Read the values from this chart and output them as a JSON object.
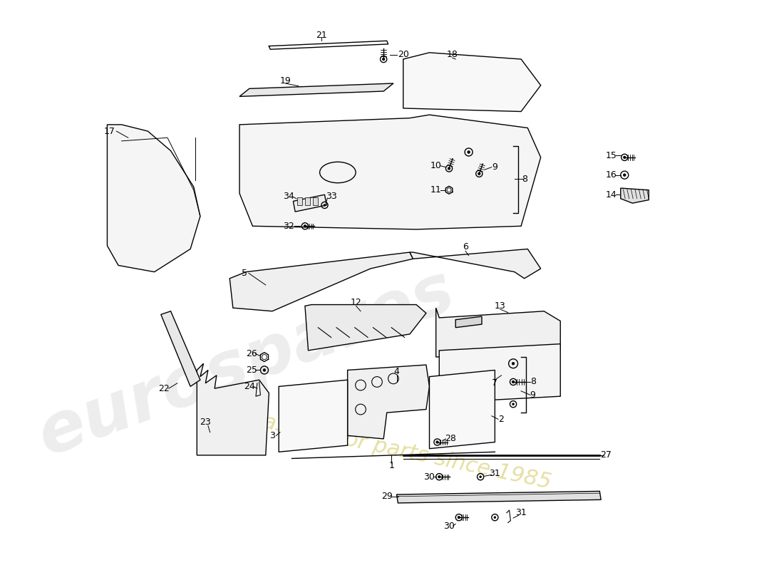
{
  "bg": "#ffffff",
  "lc": "#000000",
  "lw": 1.0,
  "wm1": "eurospares",
  "wm2": "a passion for parts since 1985"
}
